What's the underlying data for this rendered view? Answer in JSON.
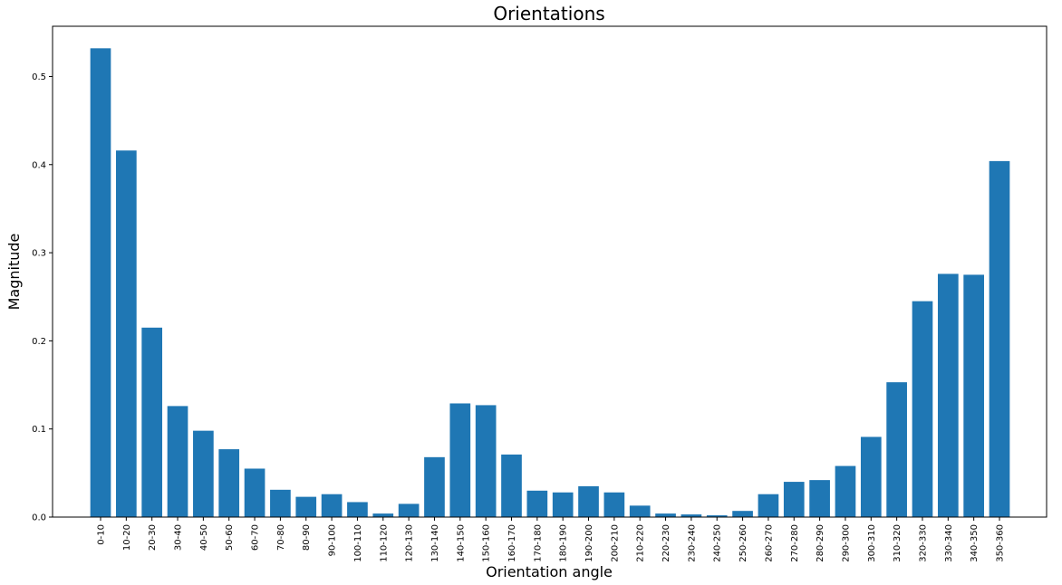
{
  "chart_data": {
    "type": "bar",
    "title": "Orientations",
    "xlabel": "Orientation angle",
    "ylabel": "Magnitude",
    "ylim": [
      0,
      0.557
    ],
    "yticks": [
      "0.0",
      "0.1",
      "0.2",
      "0.3",
      "0.4",
      "0.5"
    ],
    "bar_color": "#1f77b4",
    "grid": false,
    "categories": [
      "0-10",
      "10-20",
      "20-30",
      "30-40",
      "40-50",
      "50-60",
      "60-70",
      "70-80",
      "80-90",
      "90-100",
      "100-110",
      "110-120",
      "120-130",
      "130-140",
      "140-150",
      "150-160",
      "160-170",
      "170-180",
      "180-190",
      "190-200",
      "200-210",
      "210-220",
      "220-230",
      "230-240",
      "240-250",
      "250-260",
      "260-270",
      "270-280",
      "280-290",
      "290-300",
      "300-310",
      "310-320",
      "320-330",
      "330-340",
      "340-350",
      "350-360"
    ],
    "values": [
      0.532,
      0.416,
      0.215,
      0.126,
      0.098,
      0.077,
      0.055,
      0.031,
      0.023,
      0.026,
      0.017,
      0.004,
      0.015,
      0.068,
      0.129,
      0.127,
      0.071,
      0.03,
      0.028,
      0.035,
      0.028,
      0.013,
      0.004,
      0.003,
      0.002,
      0.007,
      0.026,
      0.04,
      0.042,
      0.058,
      0.091,
      0.153,
      0.245,
      0.276,
      0.275,
      0.404
    ]
  }
}
